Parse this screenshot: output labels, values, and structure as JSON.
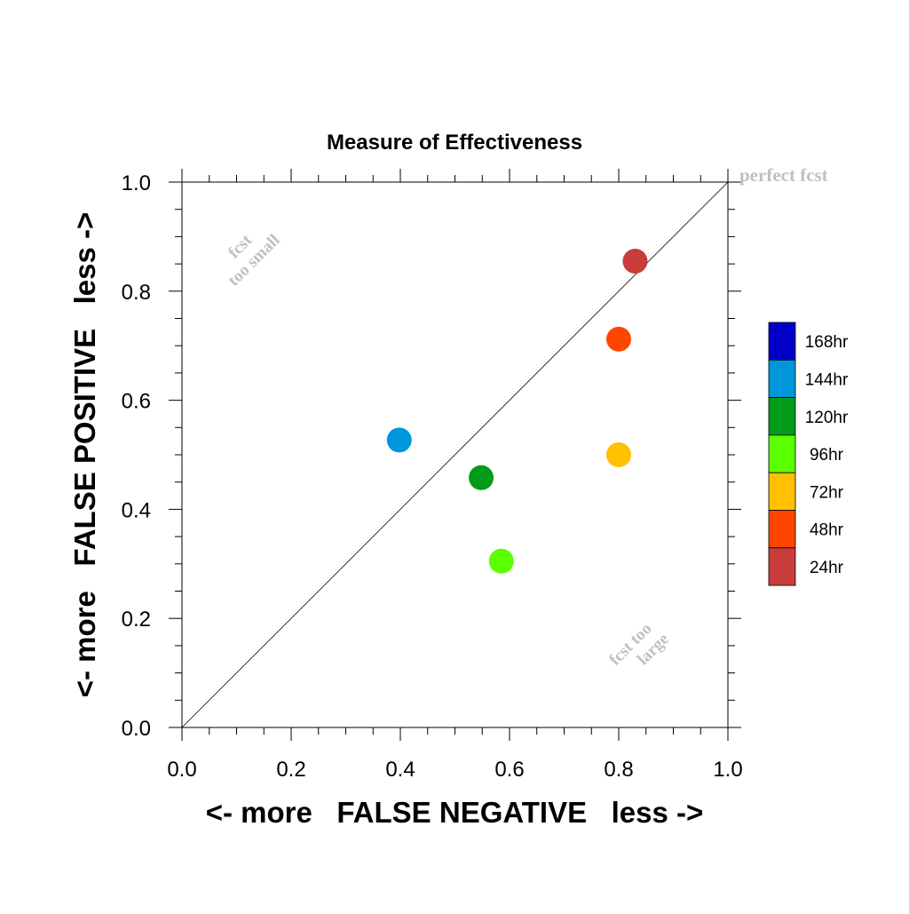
{
  "chart_data": {
    "type": "scatter",
    "title": "Measure of Effectiveness",
    "xlabel": "<- more   FALSE NEGATIVE   less ->",
    "ylabel": "<- more   FALSE POSITIVE   less ->",
    "xlim": [
      0.0,
      1.0
    ],
    "ylim": [
      0.0,
      1.0
    ],
    "xticks": [
      "0.0",
      "0.2",
      "0.4",
      "0.6",
      "0.8",
      "1.0"
    ],
    "yticks": [
      "0.0",
      "0.2",
      "0.4",
      "0.6",
      "0.8",
      "1.0"
    ],
    "grid": false,
    "legend_position": "right",
    "series": [
      {
        "name": "24hr",
        "color": "#c83c3c",
        "x": 0.83,
        "y": 0.855
      },
      {
        "name": "48hr",
        "color": "#ff4600",
        "x": 0.8,
        "y": 0.712
      },
      {
        "name": "72hr",
        "color": "#ffc000",
        "x": 0.8,
        "y": 0.5
      },
      {
        "name": "96hr",
        "color": "#5aff00",
        "x": 0.585,
        "y": 0.305
      },
      {
        "name": "120hr",
        "color": "#009b1a",
        "x": 0.548,
        "y": 0.458
      },
      {
        "name": "144hr",
        "color": "#0096dc",
        "x": 0.398,
        "y": 0.527
      },
      {
        "name": "168hr",
        "color": "#0000c8"
      }
    ],
    "annotations": {
      "perfect": "perfect fcst",
      "too_small_1": "fcst",
      "too_small_2": "too small",
      "too_large_1": "fcst too",
      "too_large_2": "large"
    }
  }
}
